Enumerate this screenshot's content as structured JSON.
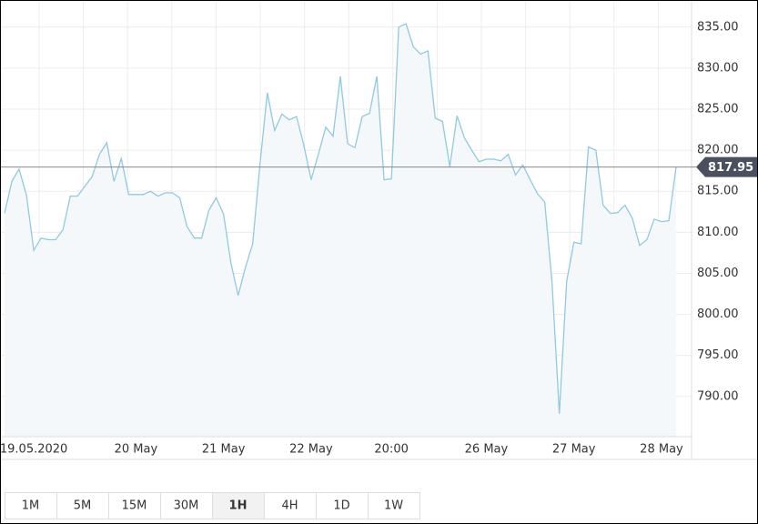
{
  "chart_data": {
    "type": "line",
    "categories": [
      null,
      null,
      null,
      null,
      "19.05.2020",
      null,
      null,
      null,
      null,
      null,
      null,
      null,
      null,
      null,
      null,
      null,
      null,
      null,
      "20 May",
      null,
      null,
      null,
      null,
      null,
      null,
      null,
      null,
      null,
      null,
      null,
      "21 May",
      null,
      null,
      null,
      null,
      null,
      null,
      null,
      null,
      null,
      null,
      null,
      "22 May",
      null,
      null,
      null,
      null,
      null,
      null,
      null,
      null,
      null,
      null,
      "20:00",
      null,
      null,
      null,
      null,
      null,
      null,
      null,
      null,
      null,
      null,
      null,
      null,
      "26 May",
      null,
      null,
      null,
      null,
      null,
      null,
      null,
      null,
      null,
      null,
      null,
      "27 May",
      null,
      null,
      null,
      null,
      null,
      null,
      null,
      null,
      null,
      null,
      null,
      "28 May",
      null,
      null
    ],
    "values": [
      812.3,
      816.2,
      817.7,
      814.5,
      807.8,
      809.3,
      809.1,
      809.1,
      810.3,
      814.4,
      814.4,
      815.6,
      816.8,
      819.5,
      820.9,
      816.2,
      819.0,
      814.6,
      814.6,
      814.6,
      815.0,
      814.4,
      814.8,
      814.8,
      814.2,
      810.7,
      809.3,
      809.3,
      812.7,
      814.2,
      812.2,
      806.3,
      802.3,
      805.7,
      808.6,
      818.4,
      827.0,
      822.4,
      824.4,
      823.7,
      824.1,
      820.6,
      816.4,
      819.5,
      822.8,
      821.7,
      829.0,
      820.8,
      820.3,
      824.1,
      824.5,
      829.0,
      816.4,
      816.5,
      835.0,
      835.4,
      832.6,
      831.7,
      832.1,
      823.9,
      823.5,
      818.0,
      824.2,
      821.5,
      820.0,
      818.6,
      818.9,
      818.9,
      818.7,
      819.5,
      817.0,
      818.2,
      816.4,
      814.7,
      813.7,
      804.0,
      787.9,
      804.0,
      808.8,
      808.6,
      820.4,
      820.0,
      813.3,
      812.3,
      812.4,
      813.3,
      811.7,
      808.4,
      809.1,
      811.6,
      811.3,
      811.4,
      817.95
    ],
    "color": "#8ecae0",
    "ylim": [
      785.1,
      838.3
    ],
    "yticks": [
      {
        "value": 790,
        "label": "790.00"
      },
      {
        "value": 795,
        "label": "795.00"
      },
      {
        "value": 800,
        "label": "800.00"
      },
      {
        "value": 805,
        "label": "805.00"
      },
      {
        "value": 810,
        "label": "810.00"
      },
      {
        "value": 815,
        "label": "815.00"
      },
      {
        "value": 820,
        "label": "820.00"
      },
      {
        "value": 825,
        "label": "825.00"
      },
      {
        "value": 830,
        "label": "830.00"
      },
      {
        "value": 835,
        "label": "835.00"
      }
    ],
    "grid": true,
    "current_price": 817.95
  },
  "timeframes": [
    "1M",
    "5M",
    "15M",
    "30M",
    "1H",
    "4H",
    "1D",
    "1W"
  ],
  "active_timeframe": 4
}
